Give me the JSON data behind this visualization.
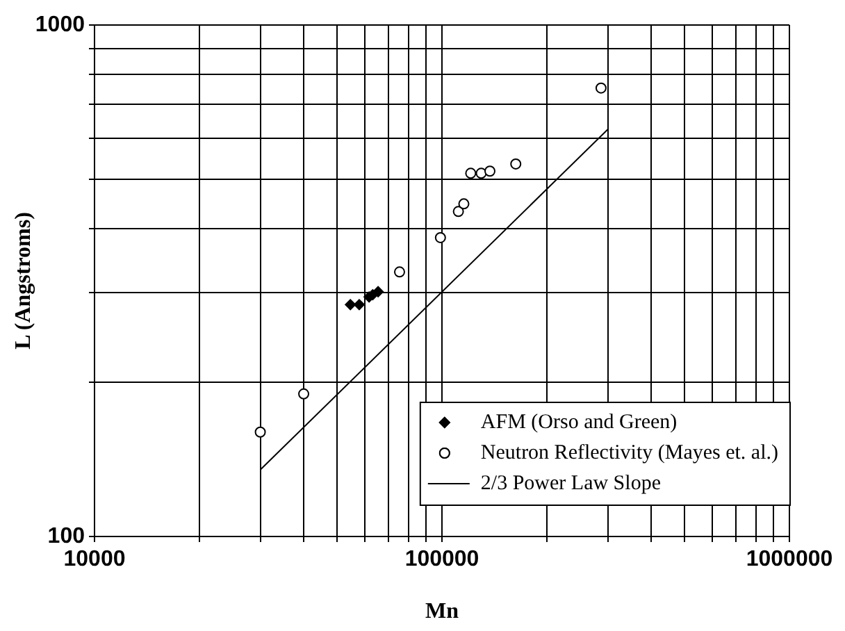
{
  "chart_data": {
    "type": "scatter",
    "xlabel": "Mn",
    "ylabel": "L (Angstroms)",
    "log": "xy",
    "grid": true,
    "legend": "bottom right",
    "xlim": [
      10000,
      1000000
    ],
    "ylim": [
      100,
      1000
    ],
    "xticks": [
      10000,
      {
        "value": 20000,
        "label": null
      },
      {
        "value": 30000,
        "label": null
      },
      {
        "value": 40000,
        "label": null
      },
      {
        "value": 50000,
        "label": null
      },
      {
        "value": 60000,
        "label": null
      },
      {
        "value": 70000,
        "label": null
      },
      {
        "value": 80000,
        "label": null
      },
      {
        "value": 90000,
        "label": null
      },
      100000,
      {
        "value": 200000,
        "label": null
      },
      {
        "value": 300000,
        "label": null
      },
      {
        "value": 400000,
        "label": null
      },
      {
        "value": 500000,
        "label": null
      },
      {
        "value": 600000,
        "label": null
      },
      {
        "value": 700000,
        "label": null
      },
      {
        "value": 800000,
        "label": null
      },
      {
        "value": 900000,
        "label": null
      },
      1000000
    ],
    "yticks": [
      100,
      {
        "value": 200,
        "label": null
      },
      {
        "value": 300,
        "label": null
      },
      {
        "value": 400,
        "label": null
      },
      {
        "value": 500,
        "label": null
      },
      {
        "value": 600,
        "label": null
      },
      {
        "value": 700,
        "label": null
      },
      {
        "value": 800,
        "label": null
      },
      {
        "value": 900,
        "label": null
      },
      1000
    ],
    "series": [
      {
        "name": "AFM (Orso and Green)",
        "marker": "diamond",
        "color": "#000000",
        "x": [
          54500,
          57800,
          61700,
          63200,
          65500
        ],
        "values": [
          284,
          284,
          294,
          297,
          301
        ]
      },
      {
        "name": "Neutron Reflectivity (Mayes et. al.)",
        "marker": "circle",
        "color": "#000000",
        "x": [
          30000,
          40000,
          75500,
          99000,
          111500,
          115600,
          121000,
          129700,
          137400,
          163100,
          287000
        ],
        "values": [
          160,
          190,
          329,
          384,
          432,
          447,
          513,
          513,
          518,
          535,
          753
        ]
      },
      {
        "name": "2/3 Power Law Slope",
        "type": "line",
        "marker": "none",
        "line_style": "solid",
        "color": "#000000",
        "x": [
          30000,
          300000
        ],
        "values": [
          135,
          625
        ]
      }
    ]
  }
}
